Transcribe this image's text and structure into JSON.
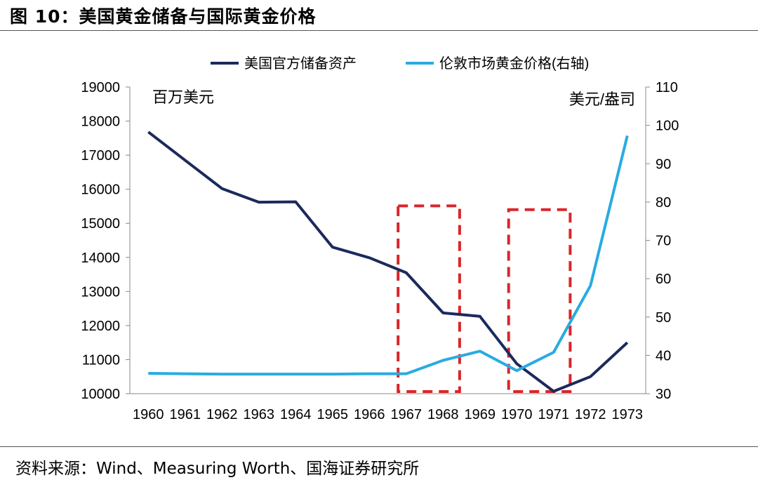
{
  "title": "图 10：美国黄金储备与国际黄金价格",
  "source": "资料来源：Wind、Measuring Worth、国海证券研究所",
  "chart_data": {
    "type": "line",
    "categories": [
      "1960",
      "1961",
      "1962",
      "1963",
      "1964",
      "1965",
      "1966",
      "1967",
      "1968",
      "1969",
      "1970",
      "1971",
      "1972",
      "1973"
    ],
    "series": [
      {
        "name": "美国官方储备资产",
        "axis": "left",
        "color": "#1b2a5c",
        "values": [
          17680,
          16850,
          16020,
          15620,
          15630,
          14300,
          13990,
          13550,
          12370,
          12270,
          10880,
          10070,
          10500,
          11500
        ]
      },
      {
        "name": "伦敦市场黄金价格(右轴)",
        "axis": "right",
        "color": "#29abe2",
        "values": [
          35.3,
          35.2,
          35.1,
          35.1,
          35.1,
          35.1,
          35.2,
          35.2,
          38.7,
          41.1,
          36.0,
          40.8,
          58.2,
          97.3
        ]
      }
    ],
    "y_left": {
      "label": "百万美元",
      "ylim": [
        10000,
        19000
      ],
      "ticks": [
        "10000",
        "11000",
        "12000",
        "13000",
        "14000",
        "15000",
        "16000",
        "17000",
        "18000",
        "19000"
      ]
    },
    "y_right": {
      "label": "美元/盎司",
      "ylim": [
        30,
        110
      ],
      "ticks": [
        "30",
        "40",
        "50",
        "60",
        "70",
        "80",
        "90",
        "100",
        "110"
      ]
    },
    "legend": "top",
    "grid": false,
    "highlights": [
      {
        "from": "1967",
        "to": "1968",
        "color": "#d9262a"
      },
      {
        "from": "1970",
        "to": "1971",
        "color": "#d9262a"
      }
    ]
  }
}
